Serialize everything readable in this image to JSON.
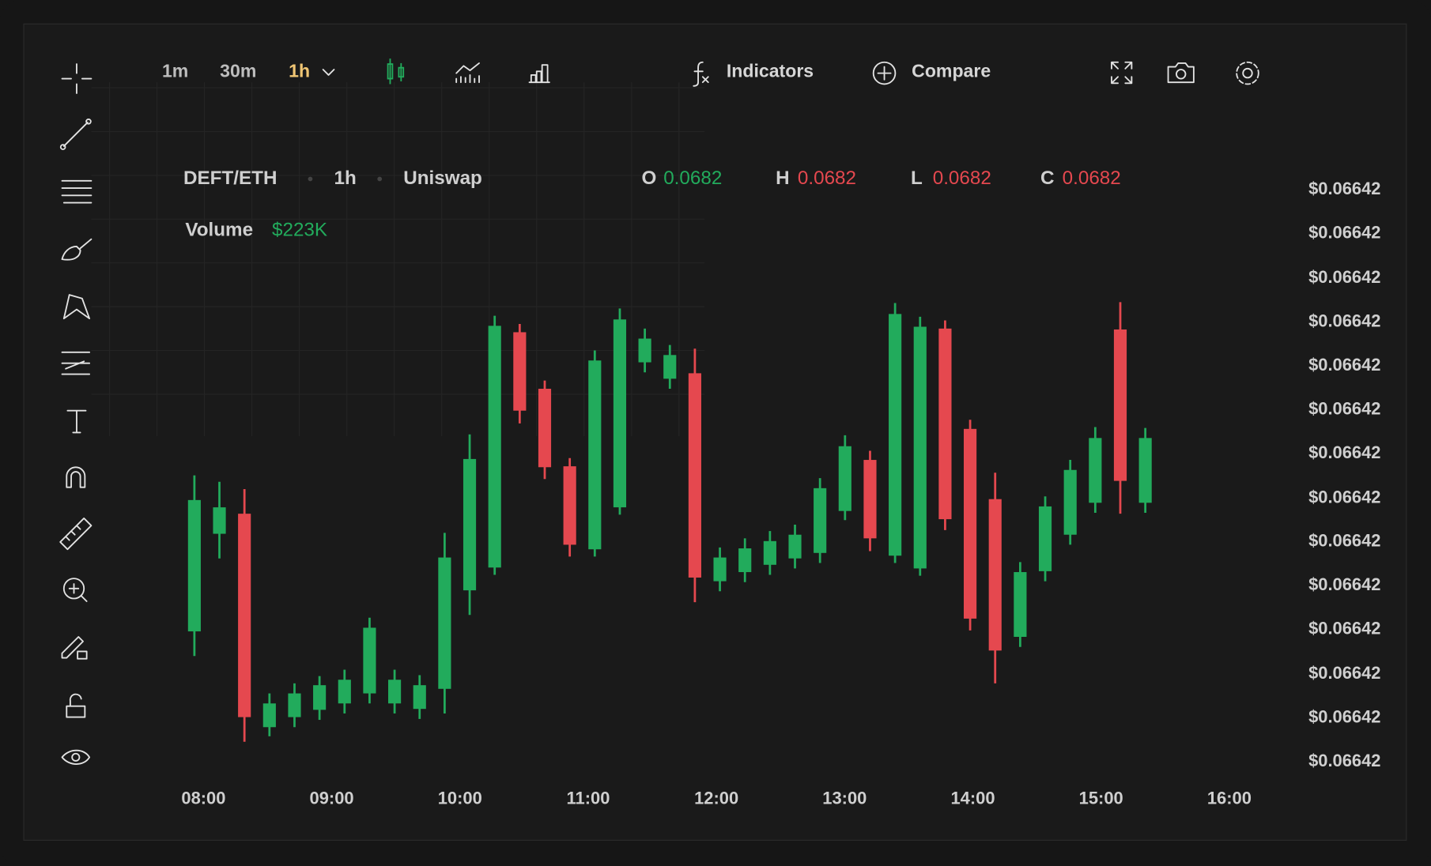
{
  "toolbar": {
    "intervals": [
      "1m",
      "30m",
      "1h"
    ],
    "indicators": "Indicators",
    "compare": "Compare"
  },
  "legend": {
    "pair": "DEFT/ETH",
    "interval": "1h",
    "exchange": "Uniswap",
    "ohlc": [
      {
        "label": "O",
        "value": "0.0682"
      },
      {
        "label": "H",
        "value": "0.0682"
      },
      {
        "label": "L",
        "value": "0.0682"
      },
      {
        "label": "C",
        "value": "0.0682"
      }
    ],
    "volume_label": "Volume",
    "volume_value": "$223K"
  },
  "chart_data": {
    "type": "candlestick",
    "up_color": "#22ab5c",
    "down_color": "#e5484f",
    "ylim": [
      0,
      700
    ],
    "yticks": [
      {
        "value": 672,
        "label": "$0.06642"
      },
      {
        "value": 624,
        "label": "$0.06642"
      },
      {
        "value": 575,
        "label": "$0.06642"
      },
      {
        "value": 527,
        "label": "$0.06642"
      },
      {
        "value": 479,
        "label": "$0.06642"
      },
      {
        "value": 431,
        "label": "$0.06642"
      },
      {
        "value": 383,
        "label": "$0.06642"
      },
      {
        "value": 334,
        "label": "$0.06642"
      },
      {
        "value": 286,
        "label": "$0.06642"
      },
      {
        "value": 238,
        "label": "$0.06642"
      },
      {
        "value": 190,
        "label": "$0.06642"
      },
      {
        "value": 141,
        "label": "$0.06642"
      },
      {
        "value": 93,
        "label": "$0.06642"
      },
      {
        "value": 45,
        "label": "$0.06642"
      }
    ],
    "x_tick_labels": [
      "08:00",
      "09:00",
      "10:00",
      "11:00",
      "12:00",
      "13:00",
      "14:00",
      "15:00",
      "16:00"
    ],
    "open": [
      188,
      295,
      317,
      83,
      94,
      102,
      109,
      120,
      109,
      103,
      125,
      233,
      258,
      516,
      454,
      369,
      278,
      324,
      483,
      465,
      471,
      243,
      253,
      261,
      268,
      274,
      320,
      376,
      271,
      257,
      520,
      410,
      333,
      182,
      254,
      294,
      329,
      519,
      329
    ],
    "high": [
      359,
      352,
      344,
      120,
      131,
      139,
      146,
      203,
      146,
      140,
      296,
      404,
      534,
      525,
      463,
      378,
      496,
      542,
      520,
      502,
      498,
      280,
      290,
      298,
      305,
      356,
      403,
      386,
      548,
      533,
      529,
      420,
      362,
      264,
      336,
      376,
      412,
      549,
      411
    ],
    "low": [
      161,
      268,
      67,
      73,
      83,
      91,
      98,
      109,
      98,
      92,
      98,
      206,
      250,
      416,
      355,
      270,
      270,
      316,
      472,
      454,
      220,
      232,
      242,
      250,
      257,
      263,
      310,
      276,
      263,
      249,
      299,
      189,
      131,
      171,
      243,
      283,
      318,
      317,
      318
    ],
    "close": [
      332,
      324,
      94,
      109,
      120,
      129,
      135,
      192,
      135,
      129,
      269,
      377,
      523,
      430,
      368,
      283,
      485,
      530,
      509,
      491,
      247,
      269,
      279,
      287,
      294,
      345,
      391,
      290,
      536,
      522,
      311,
      202,
      167,
      253,
      325,
      365,
      400,
      353,
      400
    ]
  }
}
